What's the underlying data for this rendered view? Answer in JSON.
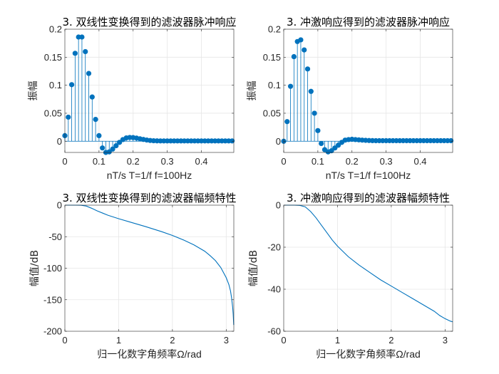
{
  "colors": {
    "series": "#0072bd",
    "axis": "#262626",
    "grid": "#e6e6e6"
  },
  "chart_data": [
    {
      "type": "stem",
      "title": "3. 双线性变换得到的滤波器脉冲响应",
      "xlabel": "nT/s  T=1/f f=100Hz",
      "ylabel": "振幅",
      "xlim": [
        0,
        0.495
      ],
      "ylim": [
        -0.02,
        0.2
      ],
      "xticks": [
        0,
        0.1,
        0.2,
        0.3,
        0.4
      ],
      "xtick_labels": [
        "0",
        "0.1",
        "0.2",
        "0.3",
        "0.4"
      ],
      "yticks": [
        0,
        0.05,
        0.1,
        0.15,
        0.2
      ],
      "ytick_labels": [
        "0",
        "0.05",
        "0.1",
        "0.15",
        "0.2"
      ],
      "grid": true,
      "x_start": 0,
      "x_step": 0.01,
      "values": [
        0.01,
        0.043,
        0.101,
        0.157,
        0.186,
        0.186,
        0.16,
        0.121,
        0.079,
        0.039,
        0.01,
        -0.012,
        -0.02,
        -0.019,
        -0.014,
        -0.008,
        -0.002,
        0.003,
        0.006,
        0.0068,
        0.0065,
        0.0056,
        0.0044,
        0.0032,
        0.0022,
        0.0014,
        0.0009,
        0.0007,
        0.0006,
        0.0006,
        0.0006,
        0.0006,
        0.0006,
        0.0006,
        0.0006,
        0.0006,
        0.0006,
        0.0006,
        0.0006,
        0.0006,
        0.0006,
        0.0006,
        0.0006,
        0.0006,
        0.0006,
        0.0006,
        0.0006,
        0.0006,
        0.0006,
        0.0006
      ]
    },
    {
      "type": "stem",
      "title": "3. 冲激响应得到的滤波器脉冲响应",
      "xlabel": "nT/s  T=1/f f=100Hz",
      "ylabel": "振幅",
      "xlim": [
        0,
        0.495
      ],
      "ylim": [
        -0.02,
        0.2
      ],
      "xticks": [
        0,
        0.1,
        0.2,
        0.3,
        0.4
      ],
      "xtick_labels": [
        "0",
        "0.1",
        "0.2",
        "0.3",
        "0.4"
      ],
      "yticks": [
        0,
        0.05,
        0.1,
        0.15,
        0.2
      ],
      "ytick_labels": [
        "0",
        "0.05",
        "0.1",
        "0.15",
        "0.2"
      ],
      "grid": true,
      "x_start": 0,
      "x_step": 0.01,
      "values": [
        0.0,
        0.035,
        0.098,
        0.151,
        0.178,
        0.181,
        0.163,
        0.129,
        0.089,
        0.05,
        0.019,
        -0.004,
        -0.015,
        -0.019,
        -0.017,
        -0.012,
        -0.007,
        -0.002,
        0.002,
        0.003,
        0.0035,
        0.003,
        0.0025,
        0.002,
        0.0016,
        0.0013,
        0.0011,
        0.001,
        0.001,
        0.001,
        0.001,
        0.001,
        0.001,
        0.001,
        0.001,
        0.001,
        0.001,
        0.001,
        0.001,
        0.001,
        0.001,
        0.001,
        0.001,
        0.001,
        0.001,
        0.001,
        0.001,
        0.001,
        0.001,
        0.001
      ]
    },
    {
      "type": "line",
      "title": "3. 双线性变换得到的滤波器幅频特性",
      "xlabel": "归一化数字角频率Ω/rad",
      "ylabel": "幅值/dB",
      "xlim": [
        0,
        3.1416
      ],
      "ylim": [
        -200,
        0
      ],
      "xticks": [
        0,
        1,
        2,
        3
      ],
      "xtick_labels": [
        "0",
        "1",
        "2",
        "3"
      ],
      "yticks": [
        -200,
        -150,
        -100,
        -50,
        0
      ],
      "ytick_labels": [
        "-200",
        "-150",
        "-100",
        "-50",
        "0"
      ],
      "grid": true,
      "x": [
        0,
        0.2,
        0.3,
        0.4,
        0.5,
        0.6,
        0.7,
        0.8,
        1.0,
        1.2,
        1.5,
        1.8,
        2.0,
        2.2,
        2.4,
        2.6,
        2.7,
        2.8,
        2.9,
        3.0,
        3.05,
        3.08,
        3.1,
        3.12,
        3.13,
        3.14
      ],
      "y": [
        0,
        0,
        -0.1,
        -1.5,
        -5,
        -9,
        -12.5,
        -16,
        -21.5,
        -26.5,
        -34,
        -42,
        -48,
        -55,
        -63,
        -73,
        -80,
        -88,
        -99,
        -115,
        -126,
        -136,
        -147,
        -162,
        -173,
        -190
      ]
    },
    {
      "type": "line",
      "title": "3. 冲激响应得到的滤波器幅频特性",
      "xlabel": "归一化数字角频率Ω/rad",
      "ylabel": "幅值/dB",
      "xlim": [
        0,
        3.1416
      ],
      "ylim": [
        -60,
        0
      ],
      "xticks": [
        0,
        1,
        2,
        3
      ],
      "xtick_labels": [
        "0",
        "1",
        "2",
        "3"
      ],
      "yticks": [
        -60,
        -40,
        -20,
        0
      ],
      "ytick_labels": [
        "-60",
        "-40",
        "-20",
        "0"
      ],
      "grid": true,
      "x": [
        0,
        0.2,
        0.3,
        0.4,
        0.5,
        0.6,
        0.7,
        0.8,
        0.9,
        1.0,
        1.2,
        1.4,
        1.6,
        1.8,
        2.0,
        2.2,
        2.4,
        2.6,
        2.8,
        2.9,
        3.0,
        3.1,
        3.1416
      ],
      "y": [
        0,
        0,
        -0.1,
        -0.8,
        -3,
        -6,
        -9.5,
        -13,
        -16.5,
        -19.5,
        -24.5,
        -28.5,
        -32,
        -35.5,
        -38.5,
        -41.5,
        -44.5,
        -47.5,
        -50.5,
        -52.5,
        -54,
        -55.2,
        -55.5
      ]
    }
  ]
}
